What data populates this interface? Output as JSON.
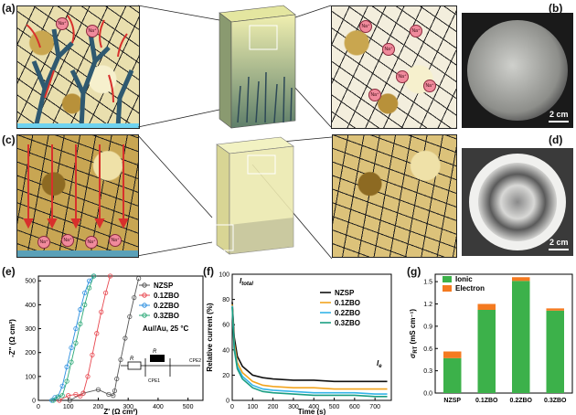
{
  "panels": {
    "a": "(a)",
    "b": "(b)",
    "c": "(c)",
    "d": "(d)",
    "e": "(e)",
    "f": "(f)",
    "g": "(g)"
  },
  "scale_bar_label": "2 cm",
  "ion_label": "Na⁺",
  "colors": {
    "NZSP": "#555555",
    "0.1ZBO": "#e8474f",
    "0.2ZBO": "#2b8fe0",
    "0.3ZBO": "#2aa877",
    "ionic": "#3cb14a",
    "electron": "#f47a20",
    "f_NZSP": "#111111",
    "f_0.1ZBO": "#f2a41e",
    "f_0.2ZBO": "#35b4e8",
    "f_0.3ZBO": "#1a9e82"
  },
  "chart_data": [
    {
      "id": "e",
      "type": "scatter",
      "xlabel": "Z' (Ω cm²)",
      "ylabel": "-Z'' (Ω cm²)",
      "xlim": [
        0,
        550
      ],
      "ylim": [
        0,
        520
      ],
      "xticks": [
        0,
        100,
        200,
        300,
        400,
        500
      ],
      "yticks": [
        0,
        100,
        200,
        300,
        400,
        500
      ],
      "annotation": "Au//Au, 25 °C",
      "circuit_labels": [
        "R",
        "R",
        "CPE1",
        "CPE2"
      ],
      "series": [
        {
          "name": "NZSP",
          "x": [
            105,
            150,
            200,
            235,
            250,
            255,
            262,
            275,
            290,
            305,
            320,
            335
          ],
          "y": [
            0,
            30,
            45,
            25,
            20,
            40,
            90,
            170,
            260,
            350,
            430,
            510
          ]
        },
        {
          "name": "0.1ZBO",
          "x": [
            70,
            100,
            125,
            140,
            150,
            165,
            180,
            195,
            210,
            225,
            240
          ],
          "y": [
            0,
            20,
            25,
            18,
            30,
            100,
            190,
            280,
            370,
            450,
            520
          ]
        },
        {
          "name": "0.2ZBO",
          "x": [
            45,
            55,
            65,
            80,
            95,
            110,
            125,
            140,
            155,
            170,
            185
          ],
          "y": [
            0,
            12,
            15,
            60,
            140,
            220,
            300,
            380,
            450,
            500,
            520
          ]
        },
        {
          "name": "0.3ZBO",
          "x": [
            50,
            65,
            80,
            95,
            110,
            125,
            140,
            155,
            170,
            185
          ],
          "y": [
            0,
            15,
            20,
            80,
            160,
            240,
            320,
            400,
            470,
            520
          ]
        }
      ]
    },
    {
      "id": "f",
      "type": "line",
      "xlabel": "Time (s)",
      "ylabel": "Relative current (%)",
      "xlim": [
        0,
        780
      ],
      "ylim": [
        0,
        100
      ],
      "xticks": [
        0,
        100,
        200,
        300,
        400,
        500,
        600,
        700
      ],
      "yticks": [
        0,
        20,
        40,
        60,
        80,
        100
      ],
      "annotations": [
        "I",
        "I"
      ],
      "annotation_subscripts": [
        "total",
        "e"
      ],
      "series": [
        {
          "name": "NZSP",
          "x": [
            0,
            10,
            25,
            50,
            100,
            150,
            200,
            300,
            400,
            500,
            600,
            700,
            760
          ],
          "y": [
            78,
            50,
            35,
            27,
            20,
            18,
            17,
            16,
            16,
            15,
            15,
            15,
            15
          ]
        },
        {
          "name": "0.1ZBO",
          "x": [
            0,
            10,
            25,
            50,
            100,
            150,
            200,
            300,
            400,
            500,
            600,
            700,
            760
          ],
          "y": [
            76,
            45,
            30,
            22,
            15,
            12,
            11,
            10,
            10,
            9,
            9,
            9,
            9
          ]
        },
        {
          "name": "0.2ZBO",
          "x": [
            0,
            10,
            25,
            50,
            100,
            150,
            200,
            300,
            400,
            500,
            600,
            700,
            760
          ],
          "y": [
            75,
            42,
            27,
            19,
            12,
            9,
            8,
            7,
            6,
            6,
            6,
            5,
            5
          ]
        },
        {
          "name": "0.3ZBO",
          "x": [
            0,
            10,
            25,
            50,
            100,
            150,
            200,
            300,
            400,
            500,
            600,
            700,
            760
          ],
          "y": [
            74,
            40,
            25,
            17,
            10,
            7,
            6,
            5,
            4,
            4,
            4,
            3,
            3
          ]
        }
      ]
    },
    {
      "id": "g",
      "type": "bar",
      "ylabel": "σ (mS cm⁻¹)",
      "ylabel_subscript": "RT",
      "categories": [
        "NZSP",
        "0.1ZBO",
        "0.2ZBO",
        "0.3ZBO"
      ],
      "ylim": [
        0,
        1.6
      ],
      "yticks": [
        0.0,
        0.3,
        0.6,
        0.9,
        1.2,
        1.5
      ],
      "series": [
        {
          "name": "Ionic",
          "values": [
            0.47,
            1.12,
            1.51,
            1.11
          ]
        },
        {
          "name": "Electron",
          "values": [
            0.09,
            0.08,
            0.05,
            0.03
          ]
        }
      ]
    }
  ]
}
